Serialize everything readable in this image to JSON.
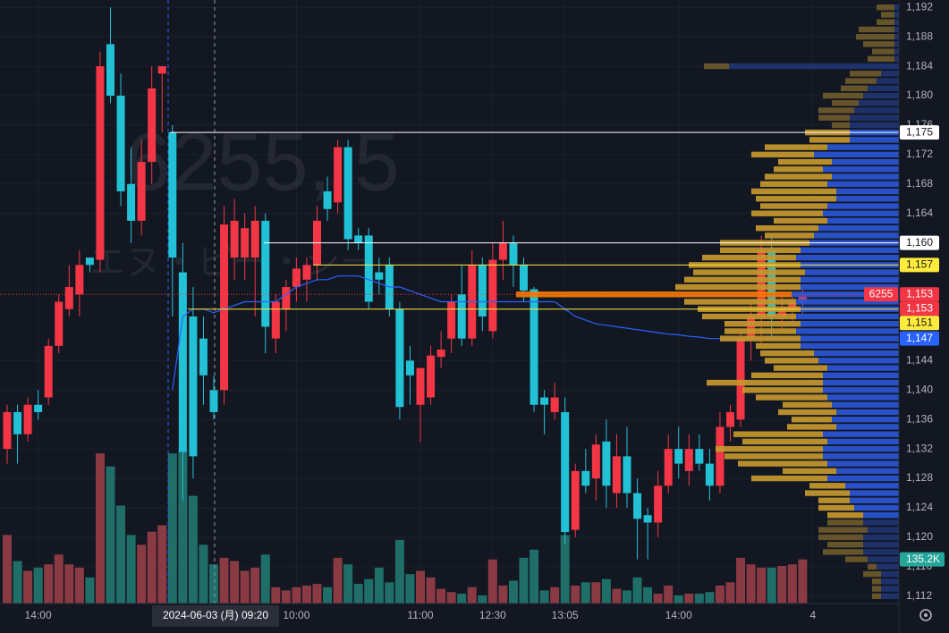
{
  "chart_data": {
    "type": "candlestick",
    "title": "6255, 5",
    "subtitle": "エヌ・ピー・シー",
    "crosshair_label": "2024-06-03 (月)  09:20",
    "categories": [
      null,
      null,
      null,
      "14:00",
      null,
      null,
      null,
      null,
      null,
      null,
      null,
      null,
      null,
      null,
      null,
      null,
      null,
      null,
      null,
      null,
      null,
      null,
      null,
      null,
      null,
      null,
      null,
      null,
      "10:00",
      null,
      null,
      null,
      null,
      null,
      null,
      null,
      null,
      null,
      null,
      null,
      "11:00",
      null,
      null,
      null,
      null,
      null,
      null,
      "12:30",
      null,
      null,
      null,
      null,
      null,
      null,
      "13:05",
      null,
      null,
      null,
      null,
      null,
      null,
      null,
      null,
      null,
      null,
      "14:00",
      null,
      null,
      null,
      null,
      null,
      null,
      null,
      null,
      null,
      null,
      null,
      null,
      "4",
      null
    ],
    "open": [
      1132,
      1137,
      1134,
      1138,
      1139,
      1146,
      1151,
      1153,
      1158,
      1157.7,
      1187,
      1180,
      1168,
      1163,
      1171,
      1183,
      1175,
      1156,
      1150,
      1147,
      1140,
      1140,
      1158,
      1158,
      1158,
      1163,
      1147,
      1151,
      1154,
      1155,
      1157,
      1167,
      1165.5,
      1173,
      1161,
      1161,
      1156,
      1157,
      1151,
      1144,
      1138,
      1139,
      1144.5,
      1147,
      1153,
      1147,
      1157,
      1148,
      1157.7,
      1160,
      1157,
      1153.7,
      1139,
      1137,
      1137,
      1121,
      1129,
      1128,
      1133,
      1126,
      1131,
      1126,
      1123,
      1122,
      1127,
      1132,
      1129,
      1132,
      1130,
      1127,
      1135,
      1136,
      1147,
      1150,
      1159,
      1150,
      1151,
      1152,
      null,
      null
    ],
    "high": [
      1138,
      1138,
      1139,
      1140,
      1147,
      1153,
      1157,
      1159,
      1158,
      1186,
      1192,
      1183,
      1173,
      1174,
      1184,
      1184,
      1176,
      1160,
      1154,
      1150,
      1142,
      1165,
      1166,
      1164,
      1165,
      1164,
      1153,
      1155,
      1158,
      1158,
      1165,
      1169,
      1174,
      1174,
      1162,
      1162,
      1158,
      1158,
      1152,
      1146,
      1143,
      1146,
      1148,
      1153,
      1157,
      1159,
      1158,
      1160,
      1163,
      1161,
      1158,
      1154,
      1140,
      1141,
      1139,
      1130,
      1132,
      1134,
      1136,
      1134,
      1135,
      1128,
      1124,
      1129,
      1134,
      1135,
      1134,
      1134,
      1132,
      1137,
      1138,
      1148,
      1152,
      1161,
      1161,
      1153,
      1153,
      1154,
      null,
      null
    ],
    "low": [
      1130,
      1130,
      1133,
      1136,
      1138,
      1145,
      1150,
      1150,
      1156,
      1156,
      1179,
      1165,
      1160,
      1161,
      1168,
      1175,
      1150,
      1125,
      1128,
      1138,
      1136,
      1138,
      1155,
      1155,
      1150,
      1145,
      1145,
      1148,
      1152,
      1152,
      1155,
      1163,
      1164,
      1159,
      1159,
      1151,
      1153,
      1150,
      1136,
      1138,
      1133,
      1138,
      1143,
      1145,
      1146,
      1146,
      1148,
      1147,
      1155,
      1154,
      1152,
      1137,
      1134,
      1136,
      1119,
      1120,
      1126,
      1125,
      1124,
      1124,
      1124,
      1117,
      1117,
      1120,
      1126,
      1128,
      1127,
      1129,
      1125,
      1126,
      1133,
      1135,
      1144,
      1146,
      1147,
      1148,
      1149,
      1150,
      null,
      null
    ],
    "close": [
      1137,
      1134,
      1138,
      1137,
      1146,
      1152,
      1154,
      1157,
      1157,
      1184,
      1180,
      1167,
      1163,
      1171,
      1181,
      1184,
      1158,
      1131.6,
      1131,
      1142,
      1137,
      1162.5,
      1163,
      1162,
      1163,
      1148.6,
      1152,
      1154,
      1156.5,
      1157,
      1163,
      1164.6,
      1173,
      1160.5,
      1160,
      1152,
      1155,
      1151,
      1137.7,
      1142,
      1143,
      1144.7,
      1145.5,
      1152,
      1147,
      1157,
      1150,
      1157.7,
      1160,
      1157,
      1153.5,
      1138,
      1138,
      1139,
      1120.7,
      1129,
      1127,
      1132.6,
      1127,
      1131,
      1126,
      1122.5,
      1122,
      1127,
      1132,
      1130,
      1132,
      1130,
      1127,
      1135,
      1137,
      1147,
      1150,
      1159,
      1150,
      1151,
      1152,
      1153,
      null,
      null
    ],
    "up_color": "#f23645",
    "down_color": "#22c1d6",
    "volume": {
      "values": [
        210000,
        130000,
        100000,
        110000,
        120000,
        150000,
        120000,
        110000,
        80000,
        460000,
        420000,
        300000,
        210000,
        180000,
        220000,
        240000,
        460000,
        470000,
        330000,
        180000,
        120000,
        140000,
        130000,
        100000,
        110000,
        150000,
        50000,
        40000,
        50000,
        55000,
        60000,
        50000,
        140000,
        120000,
        60000,
        75000,
        110000,
        65000,
        195000,
        90000,
        100000,
        80000,
        45000,
        35000,
        30000,
        50000,
        25000,
        135000,
        55000,
        70000,
        140000,
        165000,
        40000,
        50000,
        210000,
        55000,
        65000,
        65000,
        75000,
        45000,
        40000,
        80000,
        50000,
        30000,
        55000,
        25000,
        30000,
        30000,
        35000,
        55000,
        65000,
        140000,
        120000,
        110000,
        110000,
        115000,
        120000,
        135200,
        null,
        null
      ],
      "ylim": [
        0,
        1000000
      ],
      "up_color": "#8a3a43",
      "down_color": "#1f6e68",
      "last_label": {
        "value": 135200,
        "label": "135.2K"
      },
      "label_color": "#26a69a"
    },
    "vwap": {
      "color": "#2962ff",
      "values": [
        null,
        null,
        null,
        null,
        null,
        null,
        null,
        null,
        null,
        null,
        null,
        null,
        null,
        null,
        null,
        null,
        1140,
        1150,
        1151,
        1151,
        1150.5,
        1151,
        1151.5,
        1152,
        1152,
        1152,
        1152,
        1153,
        1154,
        1154.5,
        1155,
        1155,
        1155.5,
        1155.5,
        1155.5,
        1155,
        1154.5,
        1154,
        1154,
        1153.5,
        1153,
        1152.5,
        1152,
        1152,
        1152,
        1152,
        1152,
        1152,
        1152,
        1152,
        1152,
        1152,
        1152,
        1152,
        1151,
        1150,
        1149.5,
        1149,
        1148.8,
        1148.6,
        1148.4,
        1148.2,
        1148,
        1147.8,
        1147.6,
        1147.5,
        1147.3,
        1147.2,
        1147,
        1147,
        1147,
        1147,
        1147,
        1147,
        1147,
        1147,
        1147,
        1147,
        null,
        null
      ]
    },
    "price_labels": [
      {
        "value": 1175,
        "label": "1,175",
        "color": "#ffffff",
        "text_color": "#131722",
        "line": "solid"
      },
      {
        "value": 1160,
        "label": "1,160",
        "color": "#ffffff",
        "text_color": "#131722",
        "line": "solid"
      },
      {
        "value": 1157,
        "label": "1,157",
        "color": "#ffeb3b",
        "text_color": "#131722",
        "line": "solid"
      },
      {
        "value": 1153,
        "label": "1,153",
        "tag": "6255",
        "color": "#f23645",
        "text_color": "#ffffff",
        "line": "dotted"
      },
      {
        "value": 1153,
        "label": "1,153",
        "color": "#f23645",
        "text_color": "#ffffff"
      },
      {
        "value": 1151,
        "label": "1,151",
        "color": "#ffeb3b",
        "text_color": "#131722",
        "line": "solid"
      },
      {
        "value": 1147,
        "label": "1,147",
        "color": "#2962ff",
        "text_color": "#ffffff"
      }
    ],
    "ylim": [
      1111,
      1193
    ],
    "yticks": [
      {
        "value": 1192,
        "label": "1,192"
      },
      {
        "value": 1188,
        "label": "1,188"
      },
      {
        "value": 1184,
        "label": "1,184"
      },
      {
        "value": 1180,
        "label": "1,180"
      },
      {
        "value": 1176,
        "label": "1,176"
      },
      {
        "value": 1172,
        "label": "1,172"
      },
      {
        "value": 1168,
        "label": "1,168"
      },
      {
        "value": 1164,
        "label": "1,164"
      },
      {
        "value": 1144,
        "label": "1,144"
      },
      {
        "value": 1140,
        "label": "1,140"
      },
      {
        "value": 1136,
        "label": "1,136"
      },
      {
        "value": 1132,
        "label": "1,132"
      },
      {
        "value": 1128,
        "label": "1,128"
      },
      {
        "value": 1124,
        "label": "1,124"
      },
      {
        "value": 1120,
        "label": "1,120"
      },
      {
        "value": 1116,
        "label": "1,116"
      },
      {
        "value": 1112,
        "label": "1,112"
      }
    ],
    "grid": true,
    "profile": {
      "prices": [
        1112,
        1113,
        1114,
        1115,
        1116,
        1117,
        1118,
        1119,
        1120,
        1121,
        1122,
        1123,
        1124,
        1125,
        1126,
        1127,
        1128,
        1129,
        1130,
        1131,
        1132,
        1133,
        1134,
        1135,
        1136,
        1137,
        1138,
        1139,
        1140,
        1141,
        1142,
        1143,
        1144,
        1145,
        1146,
        1147,
        1148,
        1149,
        1150,
        1151,
        1152,
        1153,
        1154,
        1155,
        1156,
        1157,
        1158,
        1159,
        1160,
        1161,
        1162,
        1163,
        1164,
        1165,
        1166,
        1167,
        1168,
        1169,
        1170,
        1171,
        1172,
        1173,
        1174,
        1175,
        1176,
        1177,
        1178,
        1179,
        1180,
        1181,
        1182,
        1183,
        1184,
        1185,
        1186,
        1187,
        1188,
        1189,
        1190,
        1191,
        1192
      ],
      "down": [
        20,
        20,
        20,
        20,
        25,
        35,
        40,
        40,
        40,
        35,
        40,
        40,
        50,
        55,
        55,
        60,
        80,
        70,
        80,
        85,
        85,
        80,
        85,
        70,
        75,
        70,
        75,
        80,
        85,
        85,
        85,
        80,
        90,
        95,
        110,
        110,
        115,
        110,
        115,
        110,
        115,
        120,
        110,
        110,
        105,
        110,
        115,
        110,
        100,
        95,
        90,
        80,
        85,
        80,
        70,
        70,
        80,
        75,
        85,
        75,
        95,
        80,
        55,
        55,
        55,
        55,
        50,
        45,
        40,
        35,
        25,
        20,
        190,
        5,
        5,
        5,
        5,
        5,
        5,
        5,
        5
      ],
      "up": [
        10,
        10,
        10,
        20,
        10,
        25,
        45,
        40,
        50,
        55,
        40,
        40,
        40,
        35,
        50,
        40,
        85,
        60,
        100,
        110,
        120,
        95,
        100,
        55,
        45,
        65,
        55,
        80,
        90,
        130,
        80,
        60,
        60,
        60,
        50,
        90,
        80,
        85,
        105,
        115,
        125,
        308,
        140,
        130,
        125,
        125,
        105,
        90,
        100,
        55,
        70,
        60,
        80,
        75,
        90,
        95,
        75,
        75,
        55,
        60,
        70,
        70,
        45,
        50,
        20,
        35,
        40,
        30,
        45,
        30,
        35,
        35,
        28,
        30,
        25,
        35,
        43,
        40,
        20,
        15,
        20
      ],
      "xlim": [
        0,
        450
      ],
      "value_area": [
        1123,
        1175
      ],
      "poc": 1153,
      "down_color": "#2a56d6",
      "up_color": "#c7982c",
      "down_dim_color": "#1f3472",
      "up_dim_color": "#6e5a2c",
      "poc_color": "#f57c00"
    }
  }
}
